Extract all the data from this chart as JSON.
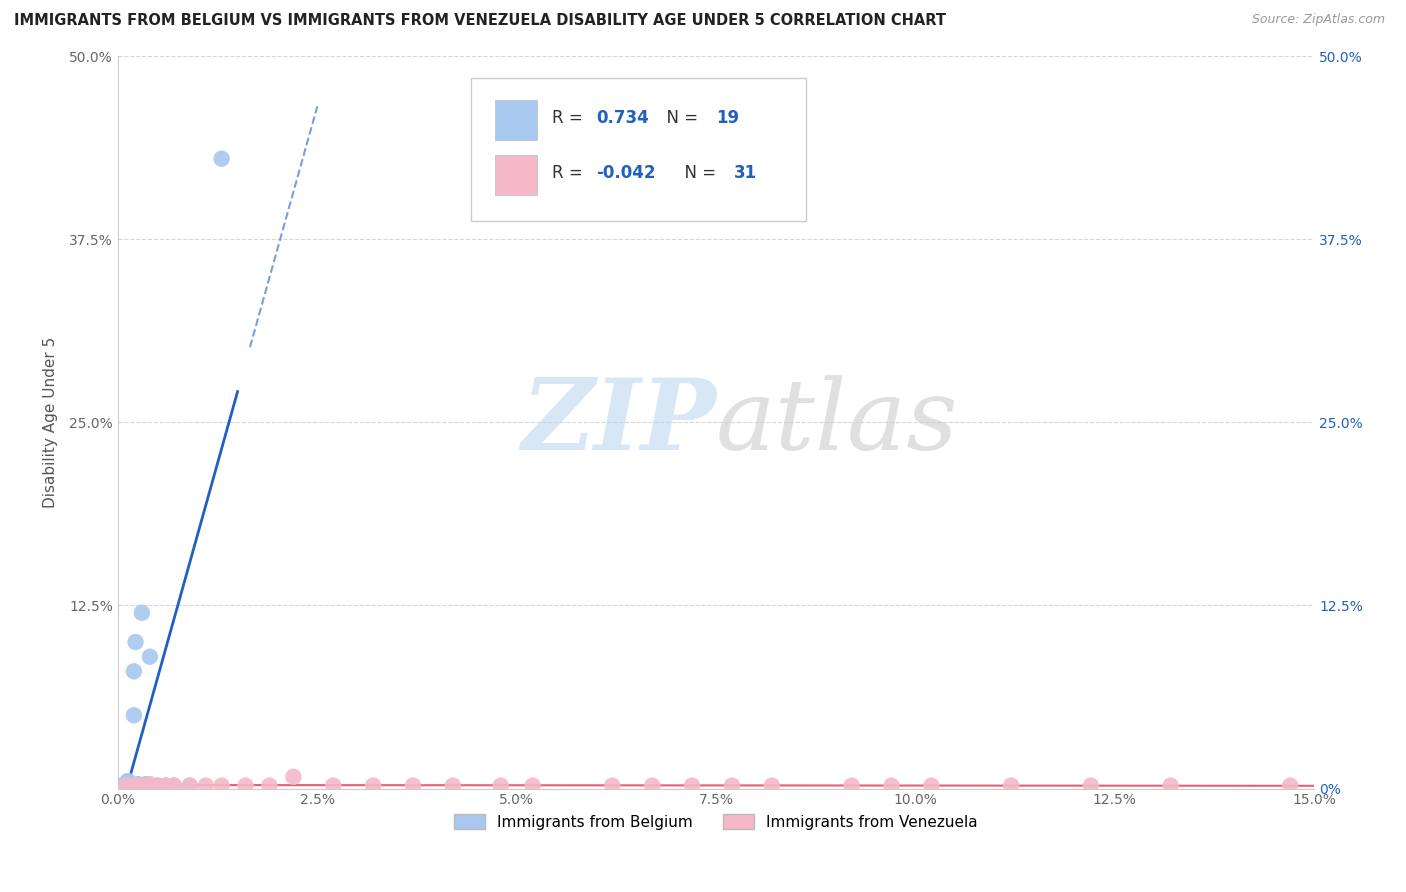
{
  "title": "IMMIGRANTS FROM BELGIUM VS IMMIGRANTS FROM VENEZUELA DISABILITY AGE UNDER 5 CORRELATION CHART",
  "source": "Source: ZipAtlas.com",
  "ylabel": "Disability Age Under 5",
  "xlim": [
    0.0,
    0.15
  ],
  "ylim": [
    0.0,
    0.5
  ],
  "xticks": [
    0.0,
    0.025,
    0.05,
    0.075,
    0.1,
    0.125,
    0.15
  ],
  "xticklabels": [
    "0.0%",
    "2.5%",
    "5.0%",
    "7.5%",
    "10.0%",
    "12.5%",
    "15.0%"
  ],
  "yticks_left": [
    0.0,
    0.125,
    0.25,
    0.375,
    0.5
  ],
  "yticklabels_left": [
    "",
    "12.5%",
    "25.0%",
    "37.5%",
    "50.0%"
  ],
  "yticks_right": [
    0.0,
    0.125,
    0.25,
    0.375,
    0.5
  ],
  "yticklabels_right": [
    "0%",
    "12.5%",
    "25.0%",
    "37.5%",
    "50.0%"
  ],
  "belgium_color": "#a8c8f0",
  "venezuela_color": "#f5b8c8",
  "trend_belgium_color": "#2060c0",
  "trend_venezuela_color": "#e06080",
  "legend_r_belgium": "0.734",
  "legend_n_belgium": "19",
  "legend_r_venezuela": "-0.042",
  "legend_n_venezuela": "31",
  "legend_label_belgium": "Immigrants from Belgium",
  "legend_label_venezuela": "Immigrants from Venezuela",
  "watermark_zip": "ZIP",
  "watermark_atlas": "atlas",
  "background_color": "#ffffff",
  "grid_color": "#cccccc",
  "belgium_x": [
    0.0005,
    0.0007,
    0.001,
    0.0012,
    0.0013,
    0.0015,
    0.0017,
    0.002,
    0.002,
    0.0022,
    0.0025,
    0.003,
    0.0035,
    0.004,
    0.005,
    0.006,
    0.007,
    0.009,
    0.013
  ],
  "belgium_y": [
    0.002,
    0.002,
    0.003,
    0.005,
    0.005,
    0.003,
    0.002,
    0.05,
    0.08,
    0.1,
    0.003,
    0.12,
    0.003,
    0.09,
    0.002,
    0.002,
    0.002,
    0.002,
    0.43
  ],
  "venezuela_x": [
    0.001,
    0.002,
    0.003,
    0.004,
    0.005,
    0.006,
    0.007,
    0.009,
    0.011,
    0.013,
    0.016,
    0.019,
    0.022,
    0.027,
    0.032,
    0.037,
    0.042,
    0.048,
    0.052,
    0.062,
    0.067,
    0.072,
    0.077,
    0.082,
    0.092,
    0.097,
    0.102,
    0.112,
    0.122,
    0.132,
    0.147
  ],
  "venezuela_y": [
    0.002,
    0.002,
    0.002,
    0.003,
    0.002,
    0.002,
    0.002,
    0.002,
    0.002,
    0.002,
    0.002,
    0.002,
    0.008,
    0.002,
    0.002,
    0.002,
    0.002,
    0.002,
    0.002,
    0.002,
    0.002,
    0.002,
    0.002,
    0.002,
    0.002,
    0.002,
    0.002,
    0.002,
    0.002,
    0.002,
    0.002
  ]
}
